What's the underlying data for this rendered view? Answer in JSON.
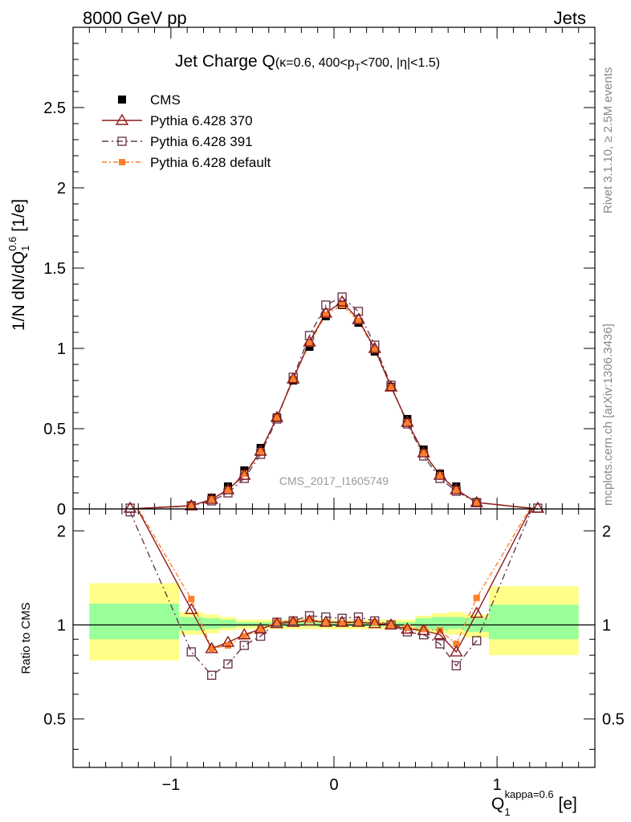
{
  "header": {
    "left": "8000 GeV pp",
    "right": "Jets",
    "title_main": "Jet Charge Q",
    "title_sub": "(κ=0.6, 400<p",
    "title_sub_sub": "T",
    "title_sub_end": "<700, |η|<1.5)",
    "watermark": "CMS_2017_I1605749"
  },
  "side_labels": {
    "rivet": "Rivet 3.1.10, ≥ 2.5M events",
    "mcplots": "mcplots.cern.ch [arXiv:1306.3436]"
  },
  "axes": {
    "y_main_label": "1/N dN/dQ",
    "y_main_label_sub": "1",
    "y_main_label_sup": "0.6",
    "y_main_label_end": " [1/e]",
    "y_ratio_label": "Ratio to CMS",
    "x_label": "Q",
    "x_label_sub": "1",
    "x_label_sup": "kappa=0.6",
    "x_label_end": " [e]",
    "x_ticks": [
      "−1",
      "0",
      "1"
    ],
    "y_main_ticks": [
      "0",
      "0.5",
      "1",
      "1.5",
      "2",
      "2.5"
    ],
    "y_ratio_ticks": [
      "0.5",
      "1",
      "2"
    ]
  },
  "legend": [
    {
      "key": "cms",
      "label": "CMS"
    },
    {
      "key": "p370",
      "label": "Pythia 6.428 370"
    },
    {
      "key": "p391",
      "label": "Pythia 6.428 391"
    },
    {
      "key": "pdef",
      "label": "Pythia 6.428 default"
    }
  ],
  "colors": {
    "cms": "#000000",
    "p370": "#8b1a1a",
    "p391": "#6b3a4f",
    "pdef": "#ff7f2a",
    "band_inner": "#99ff99",
    "band_outer": "#ffff88"
  },
  "chart_data": {
    "type": "line",
    "x": [
      -1.25,
      -0.875,
      -0.75,
      -0.65,
      -0.55,
      -0.45,
      -0.35,
      -0.25,
      -0.15,
      -0.05,
      0.05,
      0.15,
      0.25,
      0.35,
      0.45,
      0.55,
      0.65,
      0.75,
      0.875,
      1.25
    ],
    "xlim": [
      -1.6,
      1.6
    ],
    "ylim_main": [
      0,
      3.0
    ],
    "ylim_ratio": [
      0.35,
      2.35
    ],
    "ratio_log": true,
    "series": [
      {
        "name": "CMS",
        "key": "cms",
        "values": [
          0.0,
          0.02,
          0.07,
          0.14,
          0.24,
          0.38,
          0.57,
          0.8,
          1.01,
          1.2,
          1.27,
          1.16,
          0.98,
          0.76,
          0.56,
          0.37,
          0.22,
          0.14,
          0.04,
          0.0
        ]
      },
      {
        "name": "Pythia 6.428 370",
        "key": "p370",
        "values": [
          0.0,
          0.02,
          0.06,
          0.12,
          0.21,
          0.36,
          0.57,
          0.81,
          1.04,
          1.22,
          1.29,
          1.18,
          1.0,
          0.76,
          0.54,
          0.35,
          0.21,
          0.12,
          0.04,
          0.0
        ]
      },
      {
        "name": "Pythia 6.428 391",
        "key": "p391",
        "values": [
          0.0,
          0.02,
          0.05,
          0.1,
          0.19,
          0.34,
          0.56,
          0.82,
          1.08,
          1.27,
          1.32,
          1.23,
          1.02,
          0.77,
          0.53,
          0.33,
          0.19,
          0.11,
          0.04,
          0.0
        ]
      },
      {
        "name": "Pythia 6.428 default",
        "key": "pdef",
        "values": [
          0.0,
          0.02,
          0.06,
          0.12,
          0.22,
          0.36,
          0.57,
          0.81,
          1.03,
          1.21,
          1.27,
          1.17,
          0.99,
          0.76,
          0.54,
          0.35,
          0.21,
          0.12,
          0.04,
          0.0
        ]
      }
    ],
    "ratios": {
      "p370": [
        2.6,
        1.12,
        0.84,
        0.88,
        0.93,
        0.97,
        1.01,
        1.02,
        1.03,
        1.02,
        1.02,
        1.02,
        1.01,
        1.0,
        0.97,
        0.96,
        0.93,
        0.82,
        1.09,
        2.6
      ],
      "p391": [
        2.3,
        0.82,
        0.69,
        0.75,
        0.86,
        0.92,
        1.02,
        1.03,
        1.07,
        1.06,
        1.05,
        1.06,
        1.03,
        1.0,
        0.95,
        0.93,
        0.87,
        0.74,
        0.89,
        2.6
      ],
      "pdef": [
        2.6,
        1.21,
        0.84,
        0.86,
        0.92,
        0.97,
        1.02,
        1.03,
        1.04,
        1.02,
        1.01,
        1.02,
        1.02,
        1.0,
        0.98,
        0.97,
        0.96,
        0.87,
        1.22,
        2.6
      ]
    },
    "bands": [
      {
        "x0": -1.5,
        "x1": -0.95,
        "inner": [
          0.9,
          1.17
        ],
        "outer": [
          0.77,
          1.36
        ]
      },
      {
        "x0": -0.95,
        "x1": -0.8,
        "inner": [
          0.96,
          1.06
        ],
        "outer": [
          0.93,
          1.1
        ]
      },
      {
        "x0": -0.8,
        "x1": -0.7,
        "inner": [
          0.97,
          1.05
        ],
        "outer": [
          0.94,
          1.08
        ]
      },
      {
        "x0": -0.7,
        "x1": -0.6,
        "inner": [
          0.98,
          1.04
        ],
        "outer": [
          0.96,
          1.06
        ]
      },
      {
        "x0": -0.6,
        "x1": 0.5,
        "inner": [
          0.99,
          1.02
        ],
        "outer": [
          0.97,
          1.04
        ]
      },
      {
        "x0": 0.5,
        "x1": 0.6,
        "inner": [
          0.97,
          1.05
        ],
        "outer": [
          0.95,
          1.07
        ]
      },
      {
        "x0": 0.6,
        "x1": 0.7,
        "inner": [
          0.96,
          1.06
        ],
        "outer": [
          0.94,
          1.09
        ]
      },
      {
        "x0": 0.7,
        "x1": 0.8,
        "inner": [
          0.97,
          1.06
        ],
        "outer": [
          0.93,
          1.1
        ]
      },
      {
        "x0": 0.8,
        "x1": 0.95,
        "inner": [
          0.95,
          1.05
        ],
        "outer": [
          0.91,
          1.08
        ]
      },
      {
        "x0": 0.95,
        "x1": 1.5,
        "inner": [
          0.9,
          1.16
        ],
        "outer": [
          0.8,
          1.33
        ]
      }
    ]
  }
}
